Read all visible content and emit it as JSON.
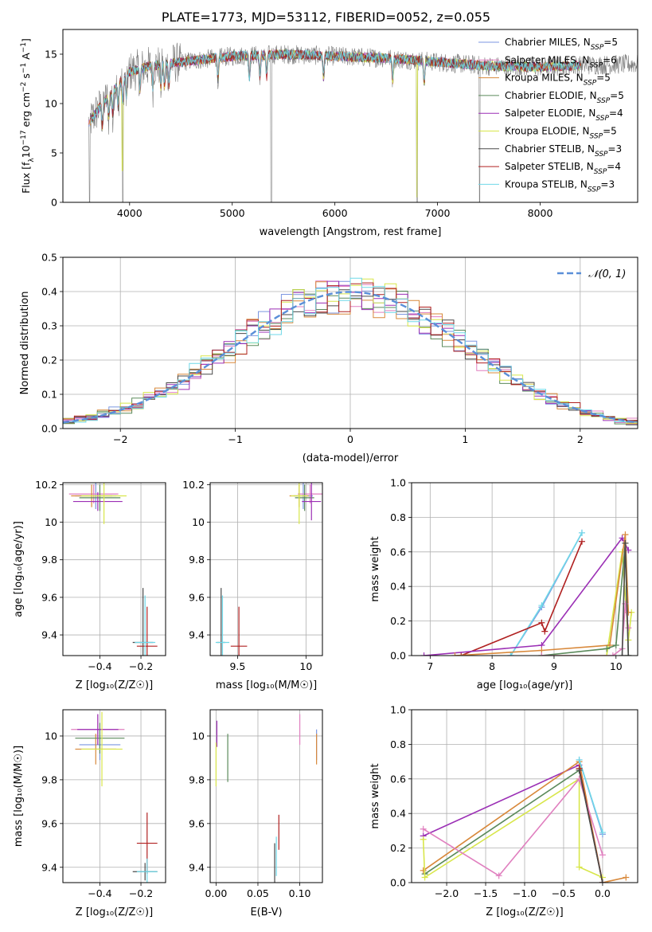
{
  "figure": {
    "title": "PLATE=1773, MJD=53112, FIBERID=0052, z=0.055"
  },
  "colors": {
    "Chabrier MILES": "#7b96e0",
    "Salpeter MILES": "#e07fbf",
    "Kroupa MILES": "#d8883a",
    "Chabrier ELODIE": "#5b8a5b",
    "Salpeter ELODIE": "#9b2fb5",
    "Kroupa ELODIE": "#d8e64a",
    "Chabrier STELIB": "#4a4a4a",
    "Salpeter STELIB": "#b02020",
    "Kroupa STELIB": "#6fd8e8",
    "gaussian": "#5a8fd8"
  },
  "chart_data": [
    {
      "panel": "spectrum",
      "type": "line",
      "xlabel": "wavelength [Angstrom, rest frame]",
      "ylabel": "Flux [f_λ10^-17 erg cm^-2 s^-1 A^-1]",
      "xlim": [
        3350,
        8950
      ],
      "ylim": [
        0,
        17.5
      ],
      "xticks": [
        4000,
        5000,
        6000,
        7000,
        8000
      ],
      "yticks": [
        0,
        5,
        10,
        15
      ],
      "legend_position": "right",
      "legend": [
        {
          "name": "Chabrier MILES",
          "label": "Chabrier MILES, N",
          "sub": "SSP",
          "tail": "=5"
        },
        {
          "name": "Salpeter MILES",
          "label": "Salpeter MILES, N",
          "sub": "SSP",
          "tail": "=6"
        },
        {
          "name": "Kroupa MILES",
          "label": "Kroupa MILES, N",
          "sub": "SSP",
          "tail": "=5"
        },
        {
          "name": "Chabrier ELODIE",
          "label": "Chabrier ELODIE, N",
          "sub": "SSP",
          "tail": "=5"
        },
        {
          "name": "Salpeter ELODIE",
          "label": "Salpeter ELODIE, N",
          "sub": "SSP",
          "tail": "=4"
        },
        {
          "name": "Kroupa ELODIE",
          "label": "Kroupa ELODIE, N",
          "sub": "SSP",
          "tail": "=5"
        },
        {
          "name": "Chabrier STELIB",
          "label": "Chabrier STELIB, N",
          "sub": "SSP",
          "tail": "=3"
        },
        {
          "name": "Salpeter STELIB",
          "label": "Salpeter STELIB, N",
          "sub": "SSP",
          "tail": "=4"
        },
        {
          "name": "Kroupa STELIB",
          "label": "Kroupa STELIB, N",
          "sub": "SSP",
          "tail": "=3"
        }
      ],
      "continuum": {
        "x": [
          3600,
          3700,
          3800,
          3900,
          4000,
          4200,
          4500,
          5000,
          5500,
          6000,
          6500,
          7000,
          7500,
          8000,
          8500,
          8950
        ],
        "y": [
          8.0,
          9.5,
          10.8,
          12.0,
          13.2,
          13.8,
          14.2,
          14.8,
          15.0,
          14.8,
          14.6,
          14.2,
          13.8,
          13.7,
          13.9,
          14.0
        ]
      },
      "deep_lines": [
        3610,
        3935,
        5380,
        6800,
        7410
      ]
    },
    {
      "panel": "residuals",
      "type": "line",
      "xlabel": "(data-model)/error",
      "ylabel": "Normed distribution",
      "xlim": [
        -2.5,
        2.5
      ],
      "ylim": [
        0,
        0.5
      ],
      "xticks": [
        -2,
        -1,
        0,
        1,
        2
      ],
      "yticks": [
        0.0,
        0.1,
        0.2,
        0.3,
        0.4,
        0.5
      ],
      "ytick_labels": [
        "0.0",
        "0.1",
        "0.2",
        "0.3",
        "0.4",
        "0.5"
      ],
      "legend": "𝒩(0, 1)",
      "legend_position": "top-right",
      "bin_width": 0.1
    },
    {
      "panel": "age_vs_Z",
      "type": "scatter",
      "xlabel": "Z [log₁₀(Z/Z☉)]",
      "ylabel": "age  [log₁₀(age/yr)]",
      "xlim": [
        -0.58,
        -0.08
      ],
      "ylim": [
        9.29,
        10.21
      ],
      "xticks": [
        -0.4,
        -0.2
      ],
      "yticks": [
        9.4,
        9.6,
        9.8,
        10.0,
        10.2
      ],
      "points": [
        {
          "s": "Chabrier MILES",
          "x": -0.42,
          "y": 10.14,
          "xe": 0.1,
          "ye": 0.07
        },
        {
          "s": "Salpeter MILES",
          "x": -0.43,
          "y": 10.15,
          "xe": 0.12,
          "ye": 0.05
        },
        {
          "s": "Kroupa MILES",
          "x": -0.44,
          "y": 10.14,
          "xe": 0.1,
          "ye": 0.06
        },
        {
          "s": "Chabrier ELODIE",
          "x": -0.4,
          "y": 10.13,
          "xe": 0.1,
          "ye": 0.07
        },
        {
          "s": "Salpeter ELODIE",
          "x": -0.41,
          "y": 10.11,
          "xe": 0.12,
          "ye": 0.05
        },
        {
          "s": "Kroupa ELODIE",
          "x": -0.38,
          "y": 10.14,
          "xe": 0.11,
          "ye": 0.15
        },
        {
          "s": "Chabrier STELIB",
          "x": -0.19,
          "y": 9.36,
          "xe": 0.05,
          "ye": 0.29
        },
        {
          "s": "Salpeter STELIB",
          "x": -0.17,
          "y": 9.34,
          "xe": 0.05,
          "ye": 0.21
        },
        {
          "s": "Kroupa STELIB",
          "x": -0.18,
          "y": 9.36,
          "xe": 0.05,
          "ye": 0.25
        }
      ]
    },
    {
      "panel": "age_vs_mass",
      "type": "scatter",
      "xlabel": "mass [log₁₀(M/M☉)]",
      "xlim": [
        9.3,
        10.12
      ],
      "ylim": [
        9.29,
        10.21
      ],
      "xticks": [
        9.5,
        10.0
      ],
      "yticks": [
        9.4,
        9.6,
        9.8,
        10.0,
        10.2
      ],
      "points": [
        {
          "s": "Chabrier MILES",
          "x": 9.98,
          "y": 10.14,
          "xe": 0.07,
          "ye": 0.07
        },
        {
          "s": "Salpeter MILES",
          "x": 10.03,
          "y": 10.15,
          "xe": 0.09,
          "ye": 0.05
        },
        {
          "s": "Kroupa MILES",
          "x": 9.95,
          "y": 10.14,
          "xe": 0.07,
          "ye": 0.06
        },
        {
          "s": "Chabrier ELODIE",
          "x": 9.99,
          "y": 10.13,
          "xe": 0.07,
          "ye": 0.07
        },
        {
          "s": "Salpeter ELODIE",
          "x": 10.04,
          "y": 10.11,
          "xe": 0.07,
          "ye": 0.1
        },
        {
          "s": "Kroupa ELODIE",
          "x": 9.95,
          "y": 10.14,
          "xe": 0.06,
          "ye": 0.15
        },
        {
          "s": "Chabrier STELIB",
          "x": 9.38,
          "y": 9.36,
          "xe": 0.03,
          "ye": 0.29
        },
        {
          "s": "Salpeter STELIB",
          "x": 9.51,
          "y": 9.34,
          "xe": 0.06,
          "ye": 0.21
        },
        {
          "s": "Kroupa STELIB",
          "x": 9.39,
          "y": 9.36,
          "xe": 0.05,
          "ye": 0.25
        }
      ]
    },
    {
      "panel": "mass_weight_vs_age",
      "type": "line",
      "xlabel": "age  [log₁₀(age/yr)]",
      "ylabel": "mass weight",
      "xlim": [
        6.7,
        10.35
      ],
      "ylim": [
        0,
        1.0
      ],
      "xticks": [
        7,
        8,
        9,
        10
      ],
      "yticks": [
        0.0,
        0.2,
        0.4,
        0.6,
        0.8,
        1.0
      ],
      "ytick_labels": [
        "0.0",
        "0.2",
        "0.4",
        "0.6",
        "0.8",
        "1.0"
      ],
      "series": [
        {
          "s": "Chabrier MILES",
          "x": [
            8.3,
            8.8,
            9.45
          ],
          "y": [
            0.0,
            0.28,
            0.71
          ]
        },
        {
          "s": "Kroupa STELIB",
          "x": [
            8.3,
            8.8,
            9.45
          ],
          "y": [
            0.0,
            0.29,
            0.71
          ]
        },
        {
          "s": "Salpeter STELIB",
          "x": [
            7.5,
            8.8,
            8.85,
            9.45
          ],
          "y": [
            0.0,
            0.19,
            0.14,
            0.66
          ]
        },
        {
          "s": "Salpeter ELODIE",
          "x": [
            6.9,
            8.8,
            10.1,
            10.2
          ],
          "y": [
            0.0,
            0.06,
            0.68,
            0.61
          ]
        },
        {
          "s": "Kroupa ELODIE",
          "x": [
            8.8,
            9.85,
            10.1,
            10.2,
            10.25
          ],
          "y": [
            0.0,
            0.0,
            0.6,
            0.09,
            0.25
          ]
        },
        {
          "s": "Kroupa MILES",
          "x": [
            7.4,
            8.8,
            9.9,
            10.15,
            10.2
          ],
          "y": [
            0.0,
            0.03,
            0.06,
            0.7,
            0.25
          ]
        },
        {
          "s": "Chabrier ELODIE",
          "x": [
            8.8,
            9.85,
            10.0,
            10.15,
            10.2
          ],
          "y": [
            0.0,
            0.04,
            0.06,
            0.65,
            0.0
          ]
        },
        {
          "s": "Salpeter MILES",
          "x": [
            8.8,
            9.95,
            10.1,
            10.15,
            10.2
          ],
          "y": [
            0.0,
            0.0,
            0.04,
            0.3,
            0.16
          ]
        },
        {
          "s": "Chabrier STELIB",
          "x": [
            10.1,
            10.15,
            10.2
          ],
          "y": [
            0.0,
            0.65,
            0.0
          ]
        }
      ]
    },
    {
      "panel": "mass_vs_Z",
      "type": "scatter",
      "xlabel": "Z [log₁₀(Z/Z☉)]",
      "ylabel": "mass [log₁₀(M/M☉)]",
      "xlim": [
        -0.58,
        -0.08
      ],
      "ylim": [
        9.33,
        10.12
      ],
      "xticks": [
        -0.4,
        -0.2
      ],
      "yticks": [
        9.4,
        9.6,
        9.8,
        10.0
      ],
      "points": [
        {
          "s": "Chabrier MILES",
          "x": -0.4,
          "y": 9.96,
          "xe": 0.1,
          "ye": 0.07
        },
        {
          "s": "Salpeter MILES",
          "x": -0.41,
          "y": 10.03,
          "xe": 0.13,
          "ye": 0.07
        },
        {
          "s": "Kroupa MILES",
          "x": -0.42,
          "y": 9.94,
          "xe": 0.1,
          "ye": 0.07
        },
        {
          "s": "Chabrier ELODIE",
          "x": -0.4,
          "y": 9.99,
          "xe": 0.12,
          "ye": 0.07
        },
        {
          "s": "Salpeter ELODIE",
          "x": -0.41,
          "y": 10.03,
          "xe": 0.1,
          "ye": 0.07
        },
        {
          "s": "Kroupa ELODIE",
          "x": -0.39,
          "y": 9.94,
          "xe": 0.1,
          "ye": 0.17
        },
        {
          "s": "Chabrier STELIB",
          "x": -0.18,
          "y": 9.38,
          "xe": 0.06,
          "ye": 0.04
        },
        {
          "s": "Salpeter STELIB",
          "x": -0.17,
          "y": 9.51,
          "xe": 0.05,
          "ye": 0.14
        },
        {
          "s": "Kroupa STELIB",
          "x": -0.17,
          "y": 9.38,
          "xe": 0.05,
          "ye": 0.06
        }
      ]
    },
    {
      "panel": "mass_vs_EBV",
      "type": "scatter",
      "xlabel": "E(B-V)",
      "xlim": [
        -0.007,
        0.127
      ],
      "ylim": [
        9.33,
        10.12
      ],
      "xticks": [
        0.0,
        0.05,
        0.1
      ],
      "xtick_labels": [
        "0.00",
        "0.05",
        "0.10"
      ],
      "yticks": [
        9.4,
        9.6,
        9.8,
        10.0
      ],
      "points": [
        {
          "s": "Chabrier MILES",
          "x": 0.12,
          "y": 9.96,
          "ye": 0.07
        },
        {
          "s": "Salpeter MILES",
          "x": 0.1,
          "y": 10.03,
          "ye": 0.07
        },
        {
          "s": "Kroupa MILES",
          "x": 0.12,
          "y": 9.94,
          "ye": 0.07
        },
        {
          "s": "Chabrier ELODIE",
          "x": 0.014,
          "y": 9.9,
          "ye": 0.11
        },
        {
          "s": "Salpeter ELODIE",
          "x": 0.001,
          "y": 10.01,
          "ye": 0.06
        },
        {
          "s": "Kroupa ELODIE",
          "x": 0.0,
          "y": 9.87,
          "ye": 0.1
        },
        {
          "s": "Chabrier STELIB",
          "x": 0.07,
          "y": 9.42,
          "ye": 0.09
        },
        {
          "s": "Salpeter STELIB",
          "x": 0.075,
          "y": 9.56,
          "ye": 0.08
        },
        {
          "s": "Kroupa STELIB",
          "x": 0.072,
          "y": 9.45,
          "ye": 0.09
        }
      ]
    },
    {
      "panel": "mass_weight_vs_Z",
      "type": "line",
      "xlabel": "Z [log₁₀(Z/Z☉)]",
      "ylabel": "mass weight",
      "xlim": [
        -2.45,
        0.45
      ],
      "ylim": [
        0,
        1.0
      ],
      "xticks": [
        -2.0,
        -1.5,
        -1.0,
        -0.5,
        0.0
      ],
      "xtick_labels": [
        "−2.0",
        "−1.5",
        "−1.0",
        "−0.5",
        "0.0"
      ],
      "yticks": [
        0.0,
        0.2,
        0.4,
        0.6,
        0.8,
        1.0
      ],
      "ytick_labels": [
        "0.0",
        "0.2",
        "0.4",
        "0.6",
        "0.8",
        "1.0"
      ],
      "series": [
        {
          "s": "Salpeter ELODIE",
          "x": [
            -2.3,
            -0.3,
            0.0
          ],
          "y": [
            0.27,
            0.68,
            0.0
          ]
        },
        {
          "s": "Kroupa MILES",
          "x": [
            -2.3,
            -0.3,
            0.0,
            0.3
          ],
          "y": [
            0.07,
            0.7,
            0.0,
            0.03
          ]
        },
        {
          "s": "Chabrier ELODIE",
          "x": [
            -2.28,
            -0.3,
            0.0
          ],
          "y": [
            0.05,
            0.65,
            0.0
          ]
        },
        {
          "s": "Kroupa ELODIE",
          "x": [
            -2.3,
            -2.28,
            -0.3,
            -0.3,
            0.0
          ],
          "y": [
            0.25,
            0.03,
            0.6,
            0.09,
            0.03
          ]
        },
        {
          "s": "Salpeter MILES",
          "x": [
            -2.3,
            -1.33,
            -0.3,
            0.0
          ],
          "y": [
            0.31,
            0.04,
            0.6,
            0.16
          ]
        },
        {
          "s": "Chabrier MILES",
          "x": [
            -0.3,
            0.0
          ],
          "y": [
            0.71,
            0.28
          ]
        },
        {
          "s": "Kroupa STELIB",
          "x": [
            -0.3,
            0.0
          ],
          "y": [
            0.71,
            0.29
          ]
        },
        {
          "s": "Salpeter STELIB",
          "x": [
            -0.3,
            0.0
          ],
          "y": [
            0.66,
            0.0
          ]
        },
        {
          "s": "Chabrier STELIB",
          "x": [
            -0.3,
            0.0
          ],
          "y": [
            0.65,
            0.0
          ]
        }
      ]
    }
  ]
}
